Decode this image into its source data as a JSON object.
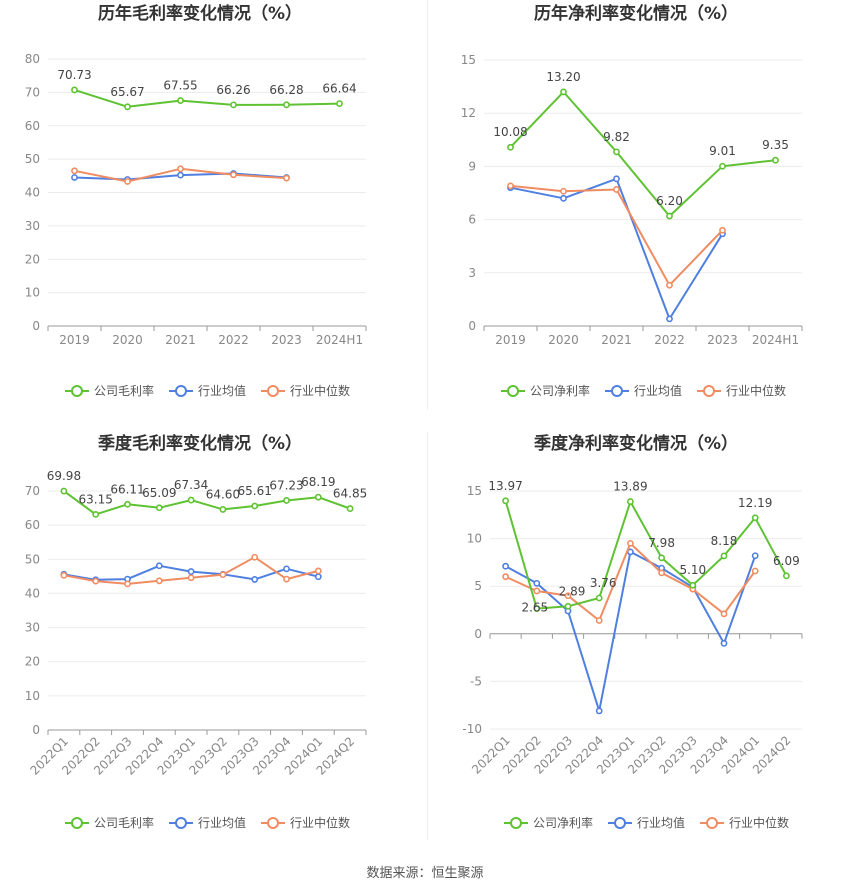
{
  "source_text": "数据来源：恒生聚源",
  "colors": {
    "company": "#5ec232",
    "industry_avg": "#4f7fe0",
    "industry_median": "#f08c62",
    "axis": "#999999",
    "tick_text": "#888888",
    "grid": "#ebebeb",
    "title": "#333333",
    "label": "#444444"
  },
  "chart_data": [
    {
      "type": "line",
      "title": "历年毛利率变化情况（%）",
      "categories": [
        "2019",
        "2020",
        "2021",
        "2022",
        "2023",
        "2024H1"
      ],
      "ylim": [
        0,
        80
      ],
      "yticks": [
        0,
        10,
        20,
        30,
        40,
        50,
        60,
        70,
        80
      ],
      "xlabel_rotation": 0,
      "series": [
        {
          "name": "公司毛利率",
          "color_key": "company",
          "labeled": true,
          "values": [
            70.73,
            65.67,
            67.55,
            66.26,
            66.28,
            66.64
          ]
        },
        {
          "name": "行业均值",
          "color_key": "industry_avg",
          "labeled": false,
          "values": [
            44.5,
            43.9,
            45.2,
            45.7,
            44.5,
            null
          ]
        },
        {
          "name": "行业中位数",
          "color_key": "industry_median",
          "labeled": false,
          "values": [
            46.5,
            43.3,
            47.1,
            45.3,
            44.3,
            null
          ]
        }
      ],
      "legend": "bottom"
    },
    {
      "type": "line",
      "title": "历年净利率变化情况（%）",
      "categories": [
        "2019",
        "2020",
        "2021",
        "2022",
        "2023",
        "2024H1"
      ],
      "ylim": [
        0,
        15
      ],
      "yticks": [
        0,
        3,
        6,
        9,
        12,
        15
      ],
      "xlabel_rotation": 0,
      "series": [
        {
          "name": "公司净利率",
          "color_key": "company",
          "labeled": true,
          "values": [
            10.08,
            13.2,
            9.82,
            6.2,
            9.01,
            9.35
          ]
        },
        {
          "name": "行业均值",
          "color_key": "industry_avg",
          "labeled": false,
          "values": [
            7.8,
            7.2,
            8.3,
            0.4,
            5.2,
            null
          ]
        },
        {
          "name": "行业中位数",
          "color_key": "industry_median",
          "labeled": false,
          "values": [
            7.9,
            7.6,
            7.7,
            2.3,
            5.4,
            null
          ]
        }
      ],
      "legend": "bottom"
    },
    {
      "type": "line",
      "title": "季度毛利率变化情况（%）",
      "categories": [
        "2022Q1",
        "2022Q2",
        "2022Q3",
        "2022Q4",
        "2023Q1",
        "2023Q2",
        "2023Q3",
        "2023Q4",
        "2024Q1",
        "2024Q2"
      ],
      "ylim": [
        0,
        70
      ],
      "yticks": [
        0,
        10,
        20,
        30,
        40,
        50,
        60,
        70
      ],
      "xlabel_rotation": -45,
      "series": [
        {
          "name": "公司毛利率",
          "color_key": "company",
          "labeled": true,
          "values": [
            69.98,
            63.15,
            66.11,
            65.09,
            67.34,
            64.6,
            65.61,
            67.23,
            68.19,
            64.85
          ]
        },
        {
          "name": "行业均值",
          "color_key": "industry_avg",
          "labeled": false,
          "values": [
            45.6,
            44.0,
            44.2,
            48.1,
            46.4,
            45.6,
            44.1,
            47.2,
            44.9,
            null
          ]
        },
        {
          "name": "行业中位数",
          "color_key": "industry_median",
          "labeled": false,
          "values": [
            45.3,
            43.6,
            42.8,
            43.7,
            44.6,
            45.5,
            50.6,
            44.2,
            46.6,
            null
          ]
        }
      ],
      "legend": "bottom"
    },
    {
      "type": "line",
      "title": "季度净利率变化情况（%）",
      "categories": [
        "2022Q1",
        "2022Q2",
        "2022Q3",
        "2022Q4",
        "2023Q1",
        "2023Q2",
        "2023Q3",
        "2023Q4",
        "2024Q1",
        "2024Q2"
      ],
      "ylim": [
        -10,
        15
      ],
      "yticks": [
        -10,
        -5,
        0,
        5,
        10,
        15
      ],
      "xlabel_rotation": -45,
      "series": [
        {
          "name": "公司净利率",
          "color_key": "company",
          "labeled": true,
          "values": [
            13.97,
            2.65,
            2.89,
            3.76,
            13.89,
            7.98,
            5.1,
            8.18,
            12.19,
            6.09
          ]
        },
        {
          "name": "行业均值",
          "color_key": "industry_avg",
          "labeled": false,
          "values": [
            7.1,
            5.3,
            2.4,
            -8.1,
            8.6,
            6.9,
            4.9,
            -1.0,
            8.2,
            null
          ]
        },
        {
          "name": "行业中位数",
          "color_key": "industry_median",
          "labeled": false,
          "values": [
            6.0,
            4.5,
            4.0,
            1.4,
            9.5,
            6.4,
            4.7,
            2.1,
            6.6,
            null
          ]
        }
      ],
      "legend": "bottom"
    }
  ]
}
